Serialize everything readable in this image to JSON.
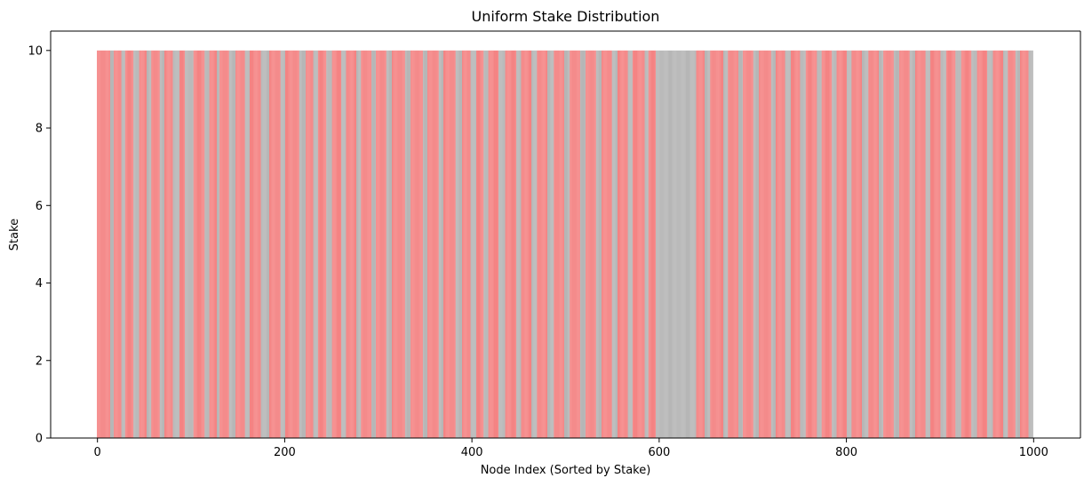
{
  "chart_data": {
    "type": "bar",
    "title": "Uniform Stake Distribution",
    "xlabel": "Node Index (Sorted by Stake)",
    "ylabel": "Stake",
    "xlim": [
      -50,
      1050
    ],
    "ylim": [
      0,
      10.5
    ],
    "x_ticks": [
      0,
      200,
      400,
      600,
      800,
      1000
    ],
    "y_ticks": [
      0,
      2,
      4,
      6,
      8,
      10
    ],
    "x_tick_labels": [
      "0",
      "200",
      "400",
      "600",
      "800",
      "1000"
    ],
    "y_tick_labels": [
      "0",
      "2",
      "4",
      "6",
      "8",
      "10"
    ],
    "grid": false,
    "legend": "none",
    "node_count": 1000,
    "bar_value": 10,
    "colors": {
      "default_bar": "#a9a9a9",
      "highlight_bar": "#f26d6d",
      "axis": "#000000",
      "background": "#ffffff"
    },
    "red_runs": [
      [
        0,
        13
      ],
      [
        18,
        25
      ],
      [
        30,
        38
      ],
      [
        45,
        52
      ],
      [
        58,
        66
      ],
      [
        72,
        80
      ],
      [
        88,
        93
      ],
      [
        103,
        114
      ],
      [
        120,
        127
      ],
      [
        131,
        140
      ],
      [
        148,
        157
      ],
      [
        163,
        174
      ],
      [
        184,
        195
      ],
      [
        201,
        215
      ],
      [
        223,
        230
      ],
      [
        236,
        244
      ],
      [
        251,
        260
      ],
      [
        266,
        276
      ],
      [
        282,
        292
      ],
      [
        298,
        308
      ],
      [
        315,
        328
      ],
      [
        335,
        347
      ],
      [
        353,
        364
      ],
      [
        370,
        382
      ],
      [
        390,
        398
      ],
      [
        405,
        412
      ],
      [
        418,
        428
      ],
      [
        436,
        447
      ],
      [
        453,
        463
      ],
      [
        470,
        480
      ],
      [
        488,
        498
      ],
      [
        505,
        515
      ],
      [
        522,
        532
      ],
      [
        539,
        549
      ],
      [
        556,
        566
      ],
      [
        572,
        584
      ],
      [
        589,
        596
      ],
      [
        640,
        648
      ],
      [
        655,
        668
      ],
      [
        674,
        684
      ],
      [
        690,
        700
      ],
      [
        707,
        719
      ],
      [
        725,
        734
      ],
      [
        741,
        750
      ],
      [
        757,
        768
      ],
      [
        774,
        784
      ],
      [
        790,
        800
      ],
      [
        806,
        816
      ],
      [
        824,
        834
      ],
      [
        840,
        850
      ],
      [
        857,
        867
      ],
      [
        874,
        884
      ],
      [
        890,
        900
      ],
      [
        907,
        916
      ],
      [
        923,
        933
      ],
      [
        940,
        950
      ],
      [
        957,
        967
      ],
      [
        973,
        980
      ],
      [
        986,
        994
      ]
    ]
  }
}
